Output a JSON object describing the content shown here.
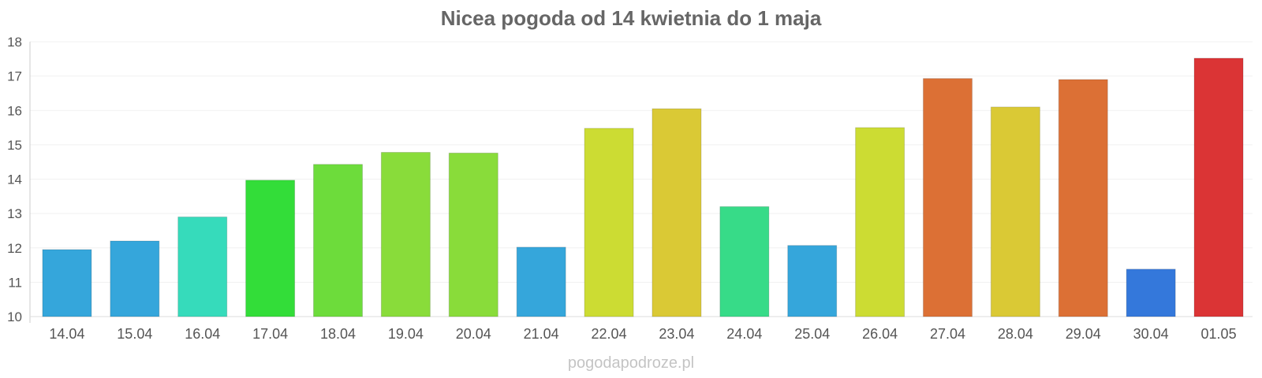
{
  "chart_data": {
    "type": "bar",
    "title": "Nicea pogoda od 14 kwietnia do 1 maja",
    "xlabel": "",
    "ylabel": "",
    "ylim": [
      10,
      18
    ],
    "yticks": [
      "10",
      "11",
      "12",
      "13",
      "14",
      "15",
      "16",
      "17",
      "18"
    ],
    "grid": true,
    "categories": [
      "14.04",
      "15.04",
      "16.04",
      "17.04",
      "18.04",
      "19.04",
      "20.04",
      "21.04",
      "22.04",
      "23.04",
      "24.04",
      "25.04",
      "26.04",
      "27.04",
      "28.04",
      "29.04",
      "30.04",
      "01.05"
    ],
    "values": [
      11.95,
      12.2,
      12.9,
      13.97,
      14.43,
      14.78,
      14.76,
      12.02,
      15.48,
      16.05,
      13.2,
      12.07,
      15.5,
      16.93,
      16.1,
      16.9,
      11.38,
      17.52
    ],
    "colors": [
      "#35a6db",
      "#35a6db",
      "#36dbbb",
      "#33dd39",
      "#6ddc3b",
      "#89dc3a",
      "#89dc3a",
      "#35a6db",
      "#ccdc33",
      "#dac935",
      "#37db88",
      "#35a6db",
      "#ccdc33",
      "#dc7035",
      "#dac935",
      "#dc7035",
      "#3478db",
      "#db3435"
    ]
  },
  "watermark": "pogodapodroze.pl"
}
